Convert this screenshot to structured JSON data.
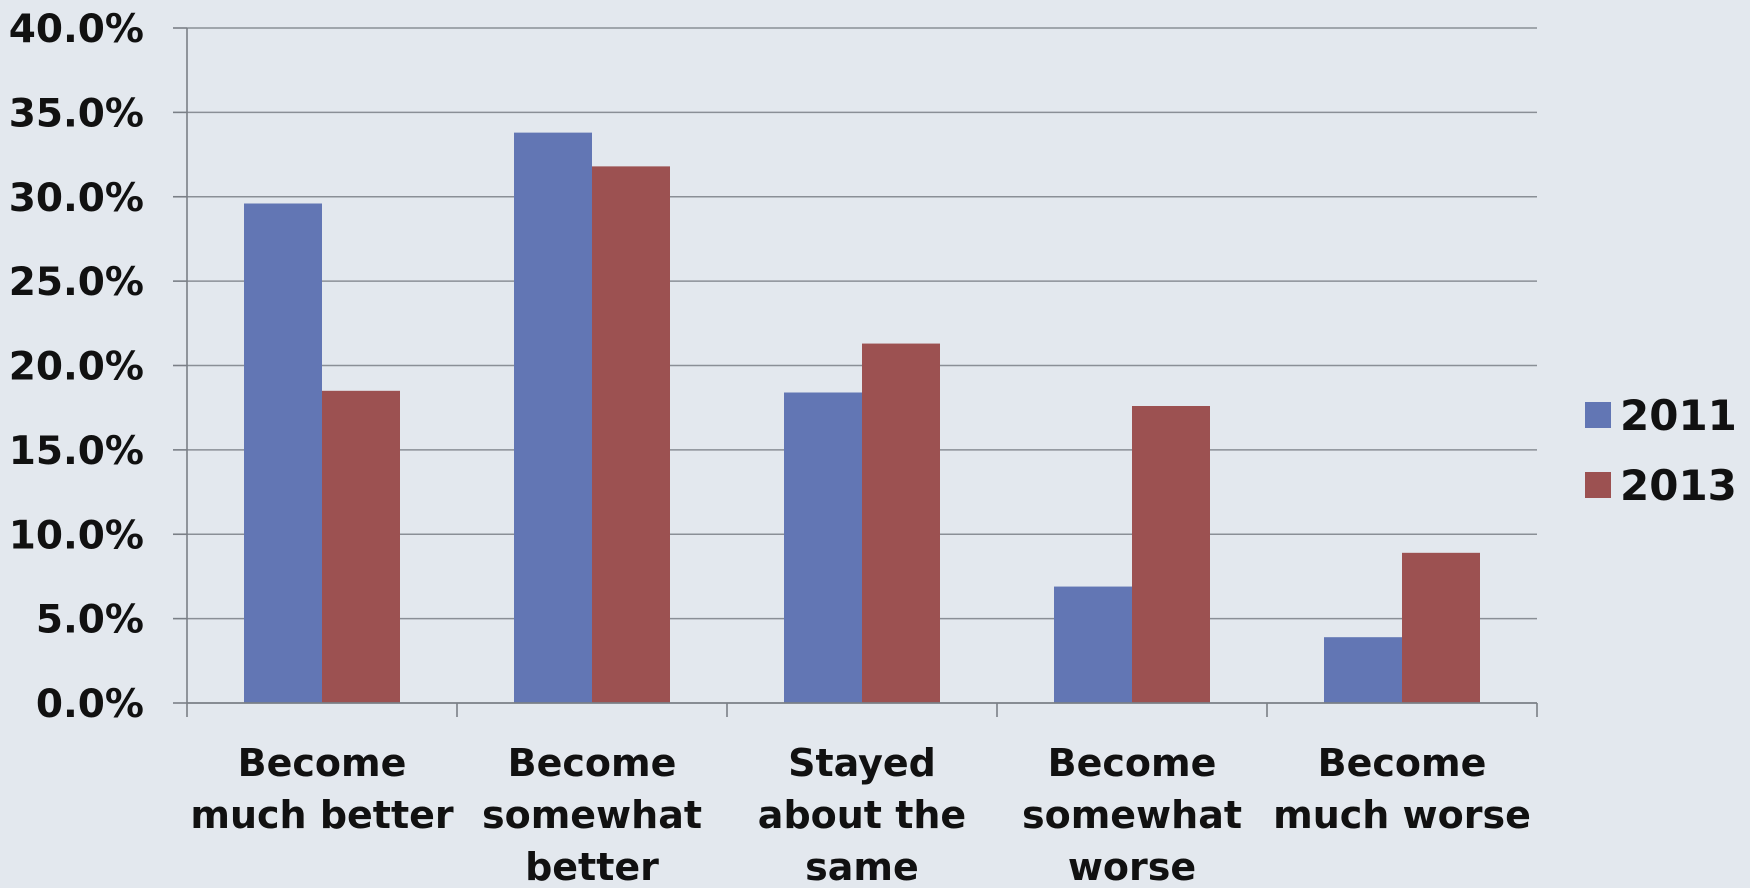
{
  "chart_data": {
    "type": "bar",
    "categories": [
      [
        "Become",
        "much better"
      ],
      [
        "Become",
        "somewhat",
        "better"
      ],
      [
        "Stayed",
        "about the",
        "same"
      ],
      [
        "Become",
        "somewhat",
        "worse"
      ],
      [
        "Become",
        "much worse"
      ]
    ],
    "series": [
      {
        "name": "2011",
        "color": "#6276b4",
        "values": [
          29.6,
          33.8,
          18.4,
          6.9,
          3.9
        ]
      },
      {
        "name": "2013",
        "color": "#9c5151",
        "values": [
          18.5,
          31.8,
          21.3,
          17.6,
          8.9
        ]
      }
    ],
    "ylim": [
      0,
      40
    ],
    "yticks": [
      "0.0%",
      "5.0%",
      "10.0%",
      "15.0%",
      "20.0%",
      "25.0%",
      "30.0%",
      "35.0%",
      "40.0%"
    ],
    "ytick_values": [
      0,
      5,
      10,
      15,
      20,
      25,
      30,
      35,
      40
    ],
    "grid": true,
    "legend_position": "right",
    "title": "",
    "xlabel": "",
    "ylabel": ""
  }
}
